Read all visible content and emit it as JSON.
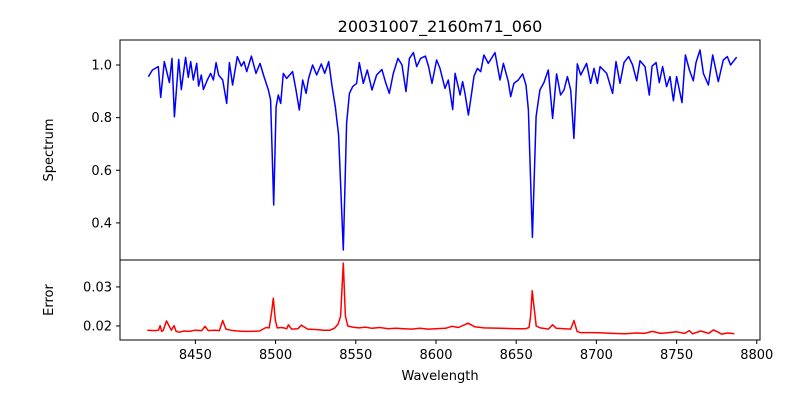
{
  "chart_data": [
    {
      "type": "line",
      "title": "20031007_2160m71_060",
      "xlabel": "",
      "ylabel": "Spectrum",
      "xlim": [
        8403,
        8802
      ],
      "ylim": [
        0.259,
        1.095
      ],
      "yticks": [
        0.4,
        0.6,
        0.8,
        1.0
      ],
      "ytick_labels": [
        "0.4",
        "0.6",
        "0.8",
        "1.0"
      ],
      "grid": false,
      "series": [
        {
          "name": "Spectrum",
          "color": "#0000ff",
          "x": [
            8420.7,
            8423.2,
            8426.9,
            8428.4,
            8430.6,
            8433.8,
            8435.4,
            8436.9,
            8439.6,
            8441.2,
            8443.9,
            8445.6,
            8447.1,
            8448.7,
            8450.8,
            8452.0,
            8453.7,
            8455.0,
            8457.4,
            8459.5,
            8461.2,
            8462.9,
            8464.5,
            8467.0,
            8469.5,
            8471.2,
            8473.2,
            8476.1,
            8478.6,
            8480.3,
            8482.0,
            8484.9,
            8487.8,
            8490.3,
            8492.8,
            8495.5,
            8496.9,
            8498.8,
            8500.3,
            8501.7,
            8503.2,
            8504.8,
            8506.9,
            8510.6,
            8512.7,
            8514.8,
            8516.9,
            8519.0,
            8520.6,
            8523.1,
            8525.6,
            8528.5,
            8530.6,
            8533.1,
            8535.2,
            8537.2,
            8539.3,
            8542.2,
            8544.3,
            8546.0,
            8548.1,
            8550.5,
            8552.2,
            8554.7,
            8557.2,
            8560.1,
            8563.0,
            8566.3,
            8568.8,
            8570.9,
            8573.4,
            8576.3,
            8578.8,
            8581.3,
            8583.4,
            8585.9,
            8588.0,
            8590.4,
            8593.4,
            8595.4,
            8597.5,
            8600.4,
            8602.5,
            8605.6,
            8607.7,
            8610.4,
            8611.9,
            8615.0,
            8616.6,
            8618.1,
            8620.2,
            8622.2,
            8623.7,
            8625.8,
            8627.9,
            8629.9,
            8632.6,
            8636.8,
            8639.9,
            8642.0,
            8645.1,
            8646.6,
            8648.6,
            8651.3,
            8654.0,
            8656.1,
            8657.6,
            8660.1,
            8662.4,
            8664.8,
            8667.3,
            8670.0,
            8672.7,
            8675.2,
            8677.7,
            8679.8,
            8681.9,
            8684.0,
            8686.0,
            8688.1,
            8690.2,
            8693.9,
            8696.4,
            8698.5,
            8700.6,
            8702.3,
            8706.4,
            8710.1,
            8712.2,
            8714.7,
            8717.2,
            8720.1,
            8722.6,
            8725.1,
            8727.2,
            8730.3,
            8733.0,
            8734.7,
            8737.2,
            8739.2,
            8741.3,
            8743.8,
            8745.9,
            8748.0,
            8750.0,
            8753.4,
            8755.5,
            8758.0,
            8760.4,
            8762.1,
            8764.6,
            8766.7,
            8769.8,
            8772.5,
            8776.0,
            8779.1,
            8781.6,
            8783.7,
            8787.5
          ],
          "y": [
            0.955,
            0.981,
            0.994,
            0.877,
            1.013,
            0.933,
            1.025,
            0.803,
            1.021,
            0.907,
            1.029,
            0.953,
            1.013,
            0.943,
            1.006,
            0.92,
            0.962,
            0.907,
            0.943,
            0.968,
            0.943,
            1.009,
            0.962,
            0.943,
            0.854,
            1.009,
            0.924,
            1.032,
            0.996,
            1.013,
            0.975,
            1.034,
            0.968,
            1.006,
            0.956,
            0.905,
            0.867,
            0.468,
            0.842,
            0.886,
            0.854,
            0.968,
            0.949,
            0.975,
            0.905,
            0.829,
            0.943,
            0.892,
            0.949,
            1.0,
            0.962,
            1.004,
            0.968,
            1.013,
            0.918,
            0.842,
            0.734,
            0.297,
            0.778,
            0.892,
            0.918,
            0.93,
            1.009,
            0.93,
            0.981,
            0.905,
            0.962,
            0.983,
            0.93,
            0.892,
            0.968,
            1.025,
            1.0,
            0.899,
            1.025,
            1.047,
            0.994,
            1.025,
            1.034,
            0.994,
            0.93,
            1.019,
            0.987,
            0.911,
            0.943,
            0.831,
            0.968,
            0.886,
            0.937,
            0.892,
            0.81,
            0.892,
            0.958,
            0.987,
            0.975,
            1.038,
            1.006,
            1.047,
            0.943,
            1.006,
            0.937,
            0.88,
            0.93,
            0.943,
            0.966,
            0.924,
            0.829,
            0.345,
            0.804,
            0.905,
            0.933,
            0.981,
            0.797,
            0.966,
            0.886,
            0.905,
            0.956,
            0.905,
            0.721,
            1.004,
            0.962,
            1.006,
            0.93,
            0.987,
            0.93,
            0.994,
            0.968,
            0.892,
            1.013,
            0.93,
            1.009,
            1.032,
            1.0,
            0.94,
            1.016,
            0.994,
            0.886,
            0.996,
            1.009,
            0.933,
            0.994,
            0.918,
            0.956,
            0.864,
            0.956,
            0.857,
            1.038,
            0.981,
            0.94,
            1.009,
            1.057,
            0.968,
            0.924,
            1.038,
            0.937,
            1.019,
            1.032,
            1.0,
            1.03
          ]
        }
      ]
    },
    {
      "type": "line",
      "title": "",
      "xlabel": "Wavelength",
      "ylabel": "Error",
      "xlim": [
        8403,
        8802
      ],
      "ylim": [
        0.0164,
        0.0369
      ],
      "xticks": [
        8450,
        8500,
        8550,
        8600,
        8650,
        8700,
        8750,
        8800
      ],
      "xtick_labels": [
        "8450",
        "8500",
        "8550",
        "8600",
        "8650",
        "8700",
        "8750",
        "8800"
      ],
      "yticks": [
        0.02,
        0.03
      ],
      "ytick_labels": [
        "0.02",
        "0.03"
      ],
      "grid": false,
      "series": [
        {
          "name": "Error",
          "color": "#ff0000",
          "x": [
            8420,
            8424,
            8427,
            8428,
            8429,
            8430,
            8432,
            8433,
            8435,
            8436.7,
            8438,
            8440,
            8443,
            8446,
            8450,
            8454,
            8456,
            8458,
            8462,
            8465,
            8467,
            8469,
            8472,
            8476,
            8480,
            8485,
            8490,
            8494,
            8496,
            8497.5,
            8498.6,
            8499.8,
            8501,
            8504,
            8507,
            8508,
            8510,
            8514,
            8516,
            8520,
            8525,
            8530,
            8534,
            8537,
            8539,
            8540.5,
            8542.2,
            8543.5,
            8545,
            8548,
            8552,
            8556,
            8560,
            8565,
            8570,
            8575,
            8580,
            8585,
            8590,
            8595,
            8600,
            8606,
            8610,
            8614,
            8620,
            8624,
            8630,
            8640,
            8650,
            8656,
            8658,
            8659,
            8660,
            8661.2,
            8662.5,
            8665,
            8670,
            8672.7,
            8675,
            8680,
            8684,
            8686,
            8688,
            8690,
            8696,
            8700,
            8705,
            8710,
            8718,
            8725,
            8730,
            8735,
            8740,
            8745,
            8750,
            8755,
            8758,
            8760,
            8765,
            8770,
            8773,
            8776,
            8778,
            8782,
            8786
          ],
          "y": [
            0.0189,
            0.0188,
            0.0189,
            0.0201,
            0.0186,
            0.0189,
            0.0213,
            0.0205,
            0.0189,
            0.0201,
            0.0186,
            0.0184,
            0.0187,
            0.0186,
            0.0189,
            0.0188,
            0.0199,
            0.0188,
            0.0189,
            0.0188,
            0.0214,
            0.0192,
            0.0189,
            0.0187,
            0.0186,
            0.0186,
            0.0187,
            0.0196,
            0.0195,
            0.0235,
            0.0271,
            0.0215,
            0.0195,
            0.0196,
            0.0193,
            0.0203,
            0.0192,
            0.0193,
            0.0202,
            0.0192,
            0.0191,
            0.0189,
            0.0189,
            0.0195,
            0.0205,
            0.0225,
            0.0361,
            0.0225,
            0.02,
            0.0197,
            0.0195,
            0.0197,
            0.0194,
            0.0196,
            0.0193,
            0.0194,
            0.0193,
            0.0192,
            0.0194,
            0.0192,
            0.0193,
            0.0194,
            0.0199,
            0.0196,
            0.0207,
            0.0198,
            0.0195,
            0.0194,
            0.0193,
            0.0193,
            0.0196,
            0.0225,
            0.029,
            0.0245,
            0.02,
            0.0195,
            0.0192,
            0.0203,
            0.0194,
            0.0193,
            0.0192,
            0.0214,
            0.0186,
            0.0183,
            0.0183,
            0.0183,
            0.0182,
            0.0181,
            0.018,
            0.0182,
            0.0181,
            0.0186,
            0.0181,
            0.0183,
            0.0185,
            0.0181,
            0.0188,
            0.018,
            0.0187,
            0.0181,
            0.019,
            0.0184,
            0.0179,
            0.0182,
            0.018
          ]
        }
      ]
    }
  ]
}
